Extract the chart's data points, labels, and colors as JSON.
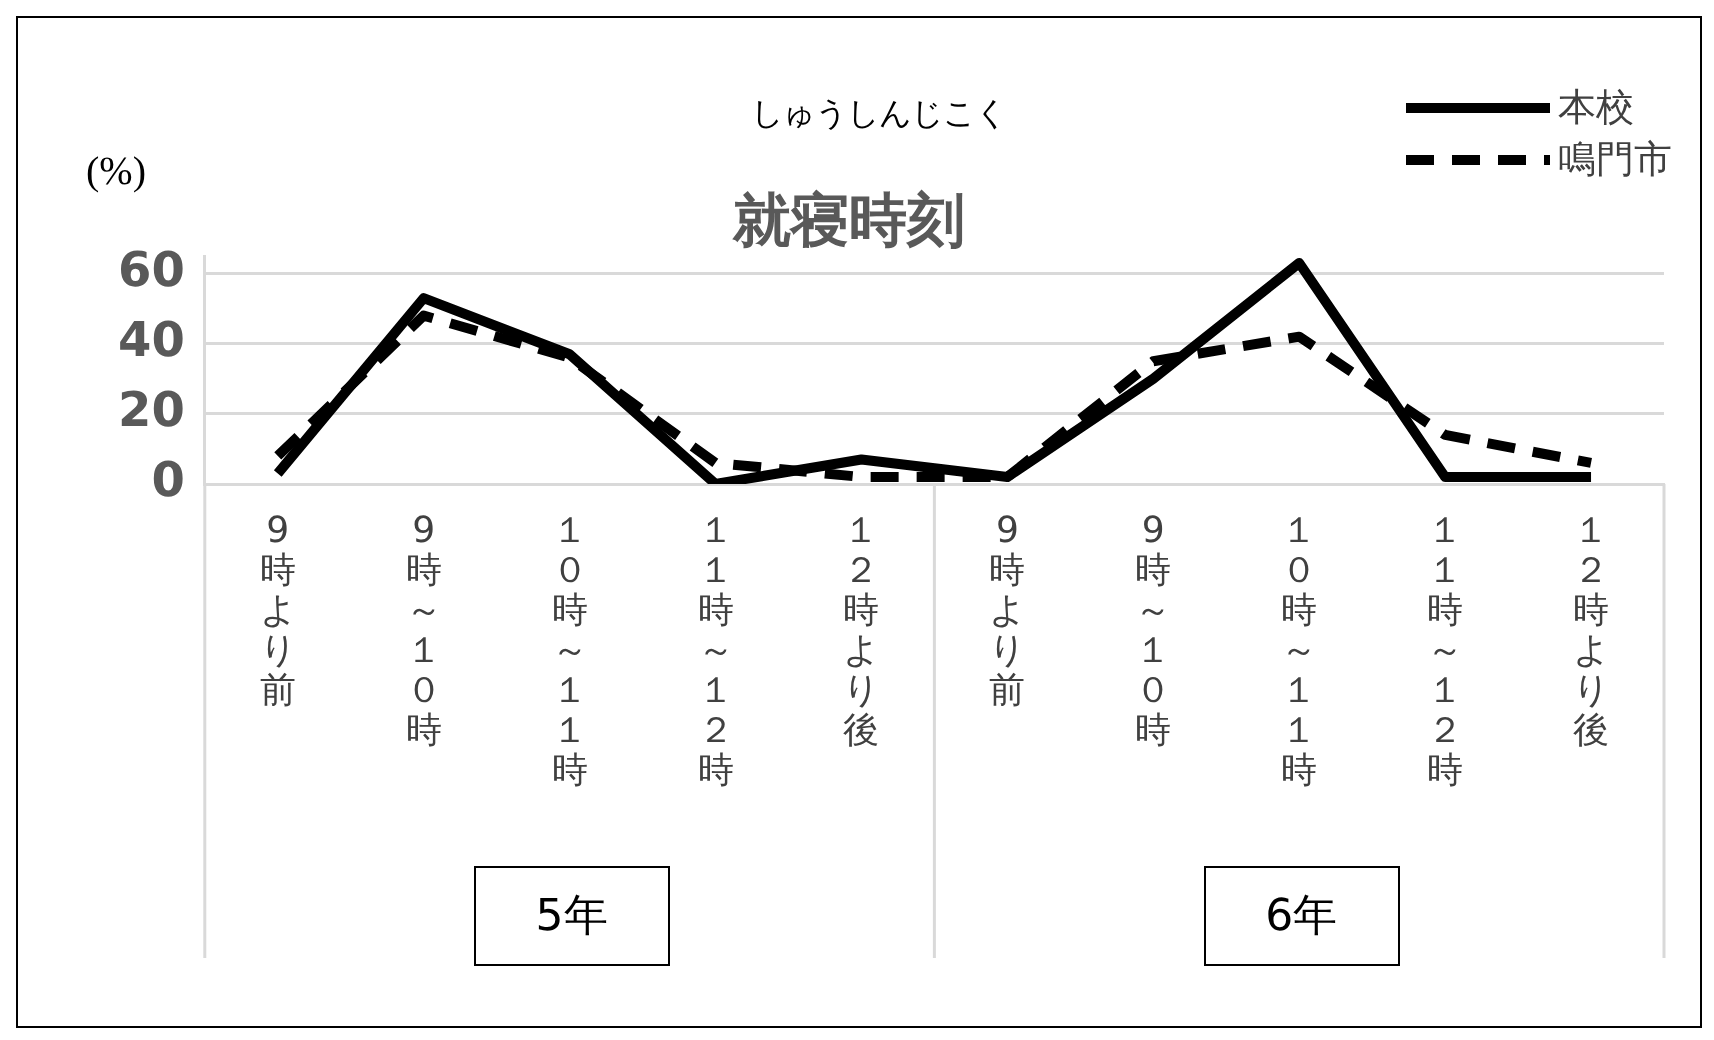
{
  "chart_data": {
    "type": "line",
    "title": "就寝時刻",
    "subtitle": "しゅうしんじこく",
    "ylabel": "(%)",
    "categories": [
      "9時より前",
      "9時～１０時",
      "１０時～１１時",
      "１１時～１２時",
      "１２時より後",
      "9時より前",
      "9時～１０時",
      "１０時～１１時",
      "１１時～１２時",
      "１２時より後"
    ],
    "series": [
      {
        "name": "本校",
        "color": "#000000",
        "line_style": "solid",
        "values": [
          3,
          53,
          37,
          0,
          7,
          2,
          30,
          63,
          2,
          2
        ]
      },
      {
        "name": "鳴門市",
        "color": "#000000",
        "line_style": "dashed",
        "values": [
          8,
          48,
          36,
          6,
          2,
          2,
          35,
          42,
          14,
          6
        ]
      }
    ],
    "ylim": [
      0,
      65
    ],
    "yticks": [
      0,
      20,
      40,
      60
    ],
    "grid": "y",
    "legend": "top right",
    "marker": "none",
    "annotations": [
      "5年",
      "6年"
    ]
  }
}
